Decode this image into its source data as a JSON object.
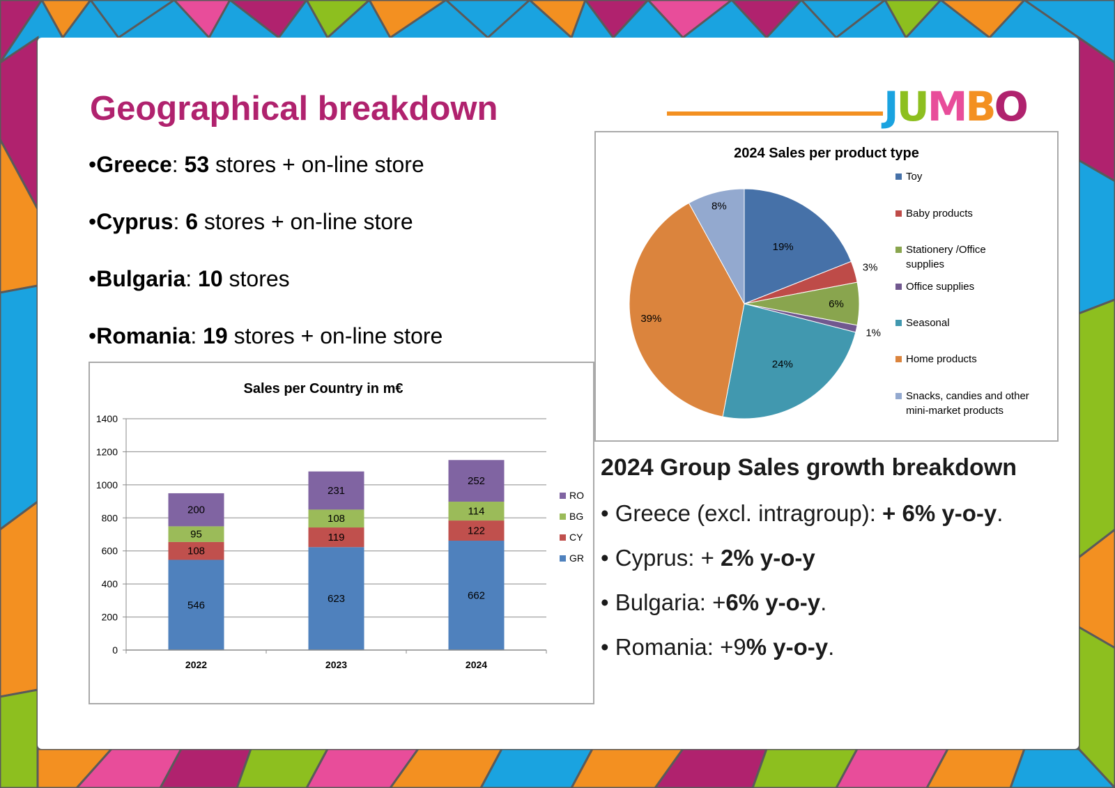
{
  "slide": {
    "title": "Geographical breakdown",
    "logo_text": "JUMBO",
    "stores": [
      {
        "bullet": "•",
        "country": "Greece",
        "sep": ": ",
        "count": "53",
        "rest": " stores + on-line store"
      },
      {
        "bullet": "•",
        "country": "Cyprus",
        "sep": ": ",
        "count": "6",
        "rest": " stores + on-line store"
      },
      {
        "bullet": "•",
        "country": "Bulgaria",
        "sep": ": ",
        "count": "10",
        "rest": " stores"
      },
      {
        "bullet": "•",
        "country": "Romania",
        "sep": ": ",
        "count": "19",
        "rest": " stores + on-line store"
      }
    ],
    "growth": {
      "title": "2024 Group Sales growth breakdown",
      "items": [
        {
          "pre": "• Greece (excl. intragroup): ",
          "bold": "+ 6% y-o-y",
          "post": "."
        },
        {
          "pre": "• Cyprus: + ",
          "bold": "2% y-o-y",
          "post": ""
        },
        {
          "pre": "• Bulgaria: +",
          "bold": "6% y-o-y",
          "post": "."
        },
        {
          "pre": "• Romania: +9",
          "bold": "% y-o-y",
          "post": "."
        }
      ]
    }
  },
  "colors": {
    "title": "#b0226e",
    "logo_line": "#f39021",
    "GR": "#4f81bd",
    "CY": "#c0504d",
    "BG": "#9bbb59",
    "RO": "#8064a2"
  },
  "chart_data": [
    {
      "type": "bar",
      "stacked": true,
      "title": "Sales per Country in m€",
      "categories": [
        "2022",
        "2023",
        "2024"
      ],
      "ylim": [
        0,
        1400
      ],
      "yticks": [
        0,
        200,
        400,
        600,
        800,
        1000,
        1200,
        1400
      ],
      "grid": true,
      "legend_position": "right",
      "series": [
        {
          "name": "GR",
          "color": "#4f81bd",
          "values": [
            546,
            623,
            662
          ]
        },
        {
          "name": "CY",
          "color": "#c0504d",
          "values": [
            108,
            119,
            122
          ]
        },
        {
          "name": "BG",
          "color": "#9bbb59",
          "values": [
            95,
            108,
            114
          ]
        },
        {
          "name": "RO",
          "color": "#8064a2",
          "values": [
            200,
            231,
            252
          ]
        }
      ]
    },
    {
      "type": "pie",
      "title": "2024 Sales per product type",
      "legend_position": "right",
      "slices": [
        {
          "label": "Toy",
          "value": 19,
          "display": "19%",
          "color": "#4671a8"
        },
        {
          "label": "Baby products",
          "value": 3,
          "display": "3%",
          "color": "#be4b48"
        },
        {
          "label": "Stationery /Office supplies",
          "value": 6,
          "display": "6%",
          "color": "#89a54e"
        },
        {
          "label": "Office supplies",
          "value": 1,
          "display": "1%",
          "color": "#71588f"
        },
        {
          "label": "Seasonal",
          "value": 24,
          "display": "24%",
          "color": "#4198af"
        },
        {
          "label": "Home products",
          "value": 39,
          "display": "39%",
          "color": "#db843d"
        },
        {
          "label": "Snacks, candies and other mini-market products",
          "value": 8,
          "display": "8%",
          "color": "#93a9cf"
        }
      ]
    }
  ]
}
